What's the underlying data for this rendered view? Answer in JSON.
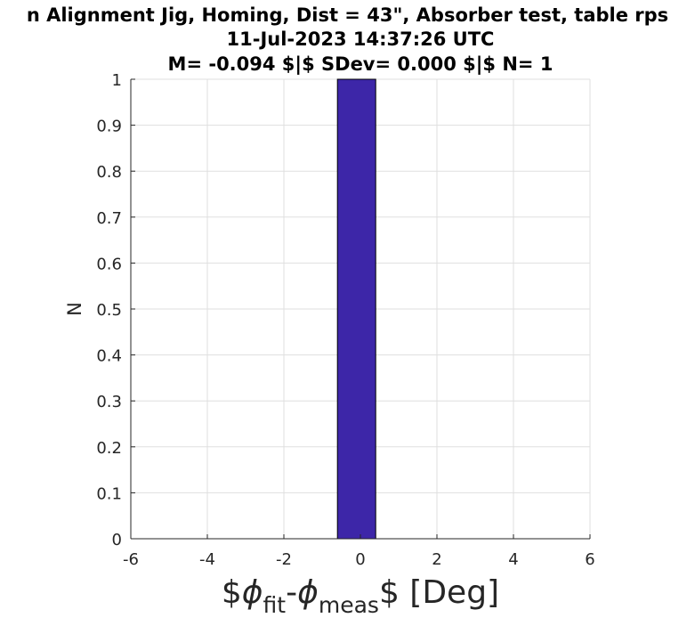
{
  "chart_data": {
    "type": "bar",
    "title": [
      "n Alignment Jig, Homing, Dist = 43\", Absorber test, table rps",
      "11-Jul-2023 14:37:26 UTC",
      "M= -0.094 $|$ SDev= 0.000 $|$ N= 1"
    ],
    "xlabel": {
      "prefix": "$",
      "phi1": "ϕ",
      "sub1": "fit",
      "dash": "-",
      "phi2": "ϕ",
      "sub2": "meas",
      "suffix": "$ [Deg]"
    },
    "ylabel": "N",
    "xlim": [
      -6,
      6
    ],
    "ylim": [
      0,
      1
    ],
    "x_ticks": [
      "-6",
      "-4",
      "-2",
      "0",
      "2",
      "4",
      "6"
    ],
    "y_ticks": [
      "0",
      "0.1",
      "0.2",
      "0.3",
      "0.4",
      "0.5",
      "0.6",
      "0.7",
      "0.8",
      "0.9",
      "1"
    ],
    "grid": true,
    "bins": [
      {
        "x_start": -0.6,
        "x_end": 0.4,
        "count": 1
      }
    ],
    "bar_color": "#3d26a8",
    "grid_color": "#dfdfdf",
    "axis_color": "#262626"
  }
}
